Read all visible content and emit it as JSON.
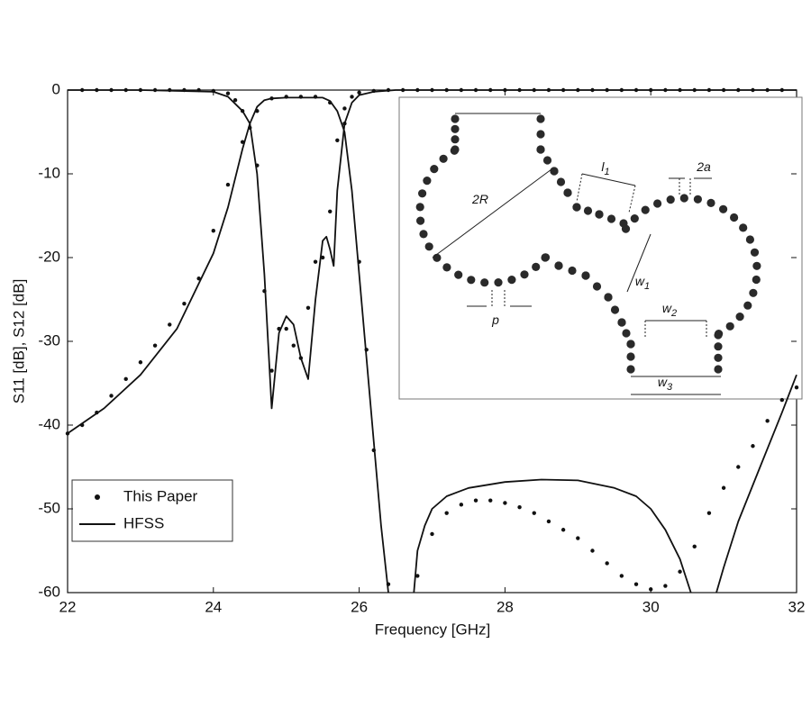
{
  "chart_data": {
    "type": "line",
    "xlabel": "Frequency [GHz]",
    "ylabel": "S11 [dB], S12 [dB]",
    "xlim": [
      22,
      32
    ],
    "xticks": [
      22,
      24,
      26,
      28,
      30,
      32
    ],
    "ylim": [
      -60,
      0
    ],
    "yticks": [
      0,
      -10,
      -20,
      -30,
      -40,
      -50,
      -60
    ],
    "grid": false,
    "legend": "lower left",
    "series": [
      {
        "name": "This Paper",
        "color": "#111111",
        "style": "markers",
        "curves": [
          {
            "x": [
              22.2,
              22.4,
              22.6,
              22.8,
              23,
              23.2,
              23.4,
              23.6,
              23.8,
              24,
              24.2,
              24.3,
              24.4,
              24.5,
              24.6,
              24.7,
              24.8,
              24.9,
              25,
              25.1,
              25.2,
              25.3,
              25.4,
              25.5,
              25.6,
              25.7,
              25.8,
              25.9,
              26,
              26.2,
              26.4,
              26.6,
              26.8,
              27,
              27.2,
              27.4,
              27.6,
              27.8,
              28,
              28.2,
              28.4,
              28.6,
              28.8,
              29,
              29.2,
              29.4,
              29.6,
              29.8,
              30,
              30.2,
              30.4,
              30.6,
              30.8,
              31,
              31.2,
              31.4,
              31.6,
              31.8
            ],
            "values": [
              0,
              0,
              0,
              0,
              0,
              0,
              0,
              0,
              0,
              -0.1,
              -0.4,
              -1.2,
              -2.5,
              -4.5,
              -9,
              -24,
              -33.5,
              -28.5,
              -28.5,
              -30.5,
              -32,
              -26,
              -20.5,
              -20,
              -14.5,
              -6,
              -2.2,
              -0.8,
              -0.3,
              -0.1,
              0,
              0,
              0,
              0,
              0,
              0,
              0,
              0,
              0,
              0,
              0,
              0,
              0,
              0,
              0,
              0,
              0,
              0,
              0,
              0,
              0,
              0,
              0,
              0,
              0,
              0,
              0,
              0
            ]
          },
          {
            "x": [
              22,
              22.2,
              22.4,
              22.6,
              22.8,
              23,
              23.2,
              23.4,
              23.6,
              23.8,
              24,
              24.2,
              24.4,
              24.6,
              24.8,
              25,
              25.2,
              25.4,
              25.6,
              25.8,
              26,
              26.1,
              26.2,
              26.4,
              26.8,
              27,
              27.2,
              27.4,
              27.6,
              27.8,
              28,
              28.2,
              28.4,
              28.6,
              28.8,
              29,
              29.2,
              29.4,
              29.6,
              29.8,
              30,
              30.2,
              30.4,
              30.6,
              30.8,
              31,
              31.2,
              31.4,
              31.6,
              31.8,
              32
            ],
            "values": [
              -41,
              -40,
              -38.5,
              -36.5,
              -34.5,
              -32.5,
              -30.5,
              -28,
              -25.5,
              -22.5,
              -16.8,
              -11.3,
              -6.2,
              -2.5,
              -1,
              -0.8,
              -0.8,
              -0.8,
              -1.5,
              -4,
              -20.5,
              -31,
              -43,
              -59,
              -58,
              -53,
              -50.5,
              -49.5,
              -49,
              -49,
              -49.3,
              -49.8,
              -50.5,
              -51.5,
              -52.5,
              -53.5,
              -55,
              -56.5,
              -58,
              -59,
              -59.6,
              -59.2,
              -57.5,
              -54.5,
              -50.5,
              -47.5,
              -45,
              -42.5,
              -39.5,
              -37,
              -35.5
            ]
          }
        ]
      },
      {
        "name": "HFSS",
        "color": "#111111",
        "style": "line",
        "curves": [
          {
            "x": [
              22,
              23,
              24,
              24.2,
              24.4,
              24.5,
              24.6,
              24.7,
              24.8,
              24.9,
              25,
              25.1,
              25.2,
              25.3,
              25.4,
              25.5,
              25.55,
              25.6,
              25.65,
              25.7,
              25.8,
              25.9,
              26,
              26.2,
              26.5,
              32
            ],
            "values": [
              0,
              0,
              -0.2,
              -0.8,
              -2.5,
              -4,
              -10,
              -22,
              -38,
              -29,
              -27,
              -28,
              -32,
              -34.5,
              -25,
              -18,
              -17.5,
              -19,
              -21,
              -12,
              -4,
              -1.5,
              -0.6,
              -0.2,
              0,
              0
            ]
          },
          {
            "x": [
              22,
              22.5,
              23,
              23.5,
              24,
              24.2,
              24.4,
              24.5,
              24.6,
              24.7,
              24.8,
              25,
              25.5,
              25.6,
              25.7,
              25.8,
              25.9,
              26,
              26.1,
              26.2,
              26.3,
              26.4,
              26.55,
              26.75,
              26.8,
              26.9,
              27,
              27.2,
              27.5,
              28,
              28.5,
              29,
              29.5,
              29.8,
              30,
              30.2,
              30.4,
              30.55,
              30.7,
              30.9,
              31,
              31.2,
              31.5,
              31.8,
              32
            ],
            "values": [
              -41,
              -38,
              -34,
              -28.5,
              -19.5,
              -14,
              -7,
              -4,
              -2,
              -1.2,
              -1,
              -0.9,
              -0.9,
              -1.3,
              -2.5,
              -5,
              -12,
              -22,
              -32,
              -42,
              -52,
              -60,
              null,
              -60,
              -55,
              -52,
              -50,
              -48.5,
              -47.5,
              -46.8,
              -46.5,
              -46.6,
              -47.5,
              -48.5,
              -50,
              -52.5,
              -56,
              -60,
              null,
              -60,
              -57,
              -51.5,
              -45,
              -38.5,
              -34
            ]
          }
        ]
      }
    ]
  },
  "inset": {
    "labels": [
      {
        "text": "2R"
      },
      {
        "text": "l",
        "sub": "1"
      },
      {
        "text": "2a"
      },
      {
        "text": "w",
        "sub": "1"
      },
      {
        "text": "w",
        "sub": "2"
      },
      {
        "text": "w",
        "sub": "3"
      },
      {
        "text": "p"
      }
    ]
  }
}
